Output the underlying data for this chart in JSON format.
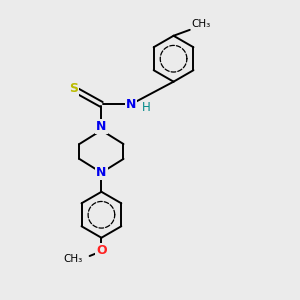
{
  "background_color": "#ebebeb",
  "bond_color": "#000000",
  "N_color": "#0000ee",
  "S_color": "#bbbb00",
  "O_color": "#ff2222",
  "H_color": "#008888",
  "figsize": [
    3.0,
    3.0
  ],
  "dpi": 100,
  "xlim": [
    0,
    10
  ],
  "ylim": [
    0,
    10
  ]
}
